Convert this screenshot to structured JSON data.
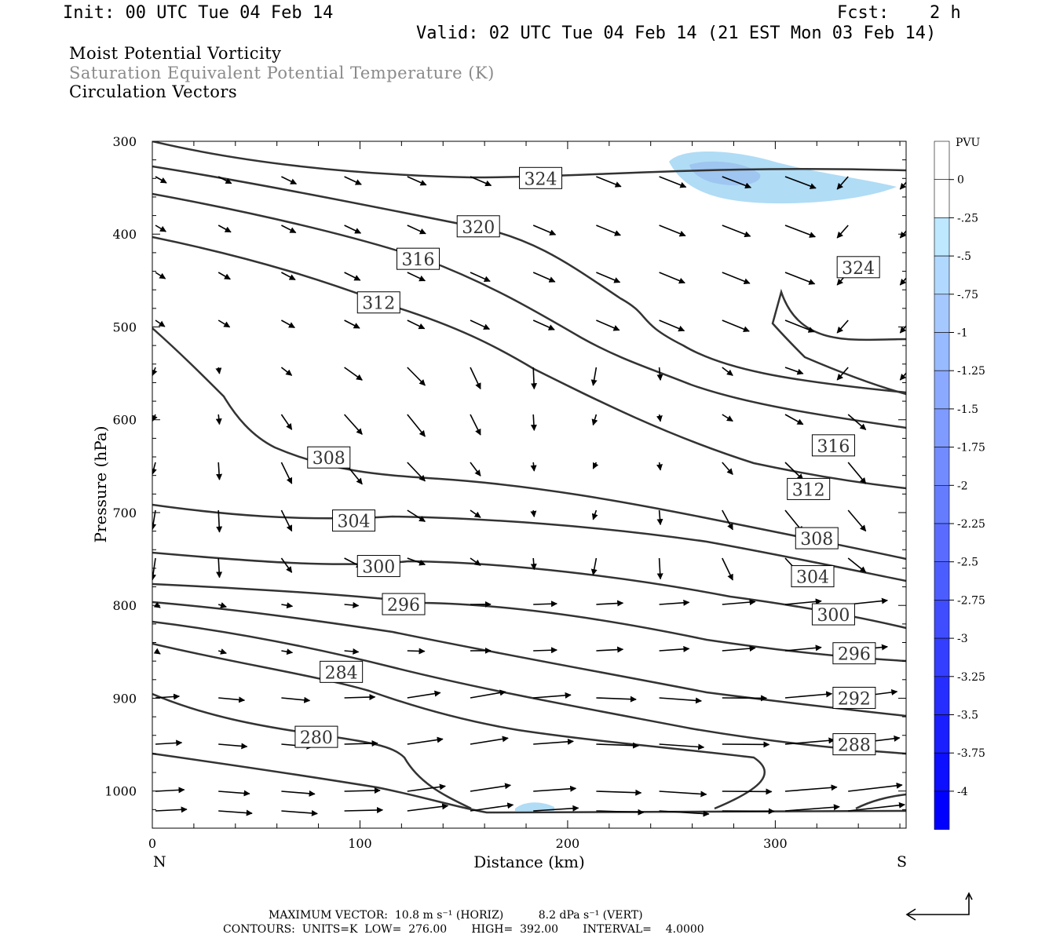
{
  "header": {
    "init": "Init: 00 UTC Tue 04 Feb 14",
    "fcst_label": "Fcst:",
    "fcst_value": "2 h",
    "valid": "Valid: 02 UTC Tue 04 Feb 14 (21 EST Mon 03 Feb 14)"
  },
  "titles": {
    "line1": "Moist Potential Vorticity",
    "line2": "Saturation Equivalent Potential Temperature (K)",
    "line3": "Circulation Vectors"
  },
  "footer": {
    "line1": "MAXIMUM VECTOR:  10.8 m s⁻¹ (HORIZ)          8.2 dPa s⁻¹ (VERT)",
    "line2": "CONTOURS:  UNITS=K  LOW=  276.00       HIGH=  392.00       INTERVAL=    4.0000"
  },
  "colors": {
    "contour": "#333333",
    "pv_light": "#b0dcf5",
    "pv_mid": "#9fc6f0",
    "colorbar_top": "#ffffff",
    "colorbar_bottom": "#0000ff"
  },
  "chart_data": {
    "type": "contour",
    "title": "",
    "xlabel": "Distance (km)",
    "ylabel": "Pressure (hPa)",
    "x_ticks": [
      0,
      100,
      200,
      300
    ],
    "y_ticks": [
      300,
      400,
      500,
      600,
      700,
      800,
      900,
      1000
    ],
    "xlim": [
      0,
      363
    ],
    "ylim": [
      1040,
      300
    ],
    "x_end_labels": {
      "left": "N",
      "right": "S"
    },
    "contour_labels": [
      {
        "value": "324",
        "x": 187,
        "y": 340
      },
      {
        "value": "320",
        "x": 157,
        "y": 392
      },
      {
        "value": "316",
        "x": 128,
        "y": 427
      },
      {
        "value": "312",
        "x": 109,
        "y": 474
      },
      {
        "value": "308",
        "x": 85,
        "y": 641
      },
      {
        "value": "304",
        "x": 97,
        "y": 709
      },
      {
        "value": "300",
        "x": 109,
        "y": 758
      },
      {
        "value": "296",
        "x": 121,
        "y": 799
      },
      {
        "value": "284",
        "x": 91,
        "y": 872
      },
      {
        "value": "280",
        "x": 79,
        "y": 942
      },
      {
        "value": "324",
        "x": 340,
        "y": 436
      },
      {
        "value": "316",
        "x": 328,
        "y": 628
      },
      {
        "value": "312",
        "x": 316,
        "y": 675
      },
      {
        "value": "308",
        "x": 320,
        "y": 728
      },
      {
        "value": "304",
        "x": 318,
        "y": 769
      },
      {
        "value": "300",
        "x": 328,
        "y": 810
      },
      {
        "value": "296",
        "x": 338,
        "y": 852
      },
      {
        "value": "292",
        "x": 338,
        "y": 900
      },
      {
        "value": "288",
        "x": 338,
        "y": 950
      }
    ],
    "colorbar": {
      "units": "PVU",
      "labels": [
        "0",
        "-.25",
        "-.5",
        "-.75",
        "-1",
        "-1.25",
        "-1.5",
        "-1.75",
        "-2",
        "-2.25",
        "-2.5",
        "-2.75",
        "-3",
        "-3.25",
        "-3.5",
        "-3.75",
        "-4"
      ]
    },
    "vector_legend": "reference arrows"
  }
}
